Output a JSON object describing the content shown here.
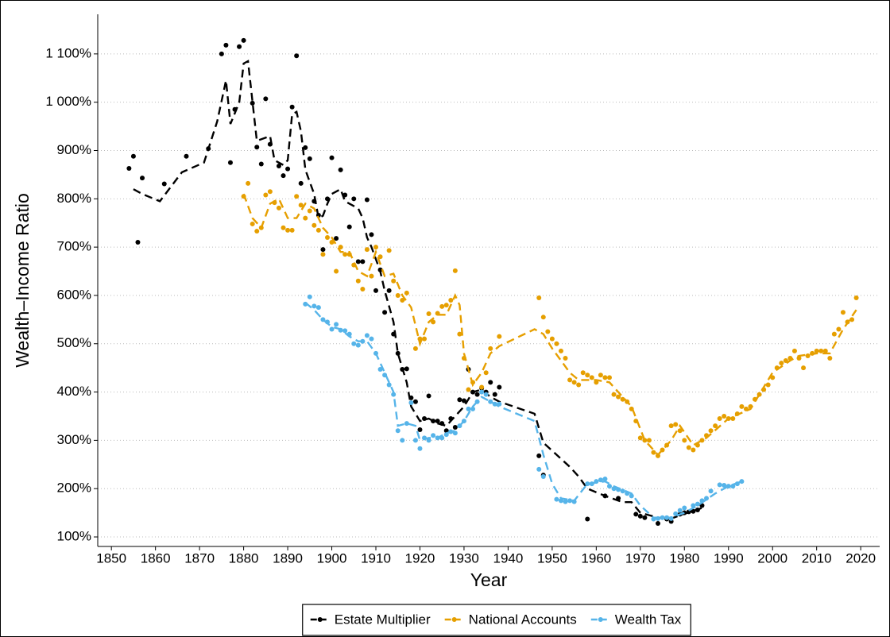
{
  "chart_data": {
    "type": "scatter",
    "xlabel": "Year",
    "ylabel": "Wealth–Income Ratio",
    "xlim": [
      1846.9,
      2024.3
    ],
    "ylim": [
      80.3,
      1182
    ],
    "xticks": [
      1850,
      1860,
      1870,
      1880,
      1890,
      1900,
      1910,
      1920,
      1930,
      1940,
      1950,
      1960,
      1970,
      1980,
      1990,
      2000,
      2010,
      2020
    ],
    "yticks": [
      {
        "value": 100,
        "label": "100%"
      },
      {
        "value": 200,
        "label": "200%"
      },
      {
        "value": 300,
        "label": "300%"
      },
      {
        "value": 400,
        "label": "400%"
      },
      {
        "value": 500,
        "label": "500%"
      },
      {
        "value": 600,
        "label": "600%"
      },
      {
        "value": 700,
        "label": "700%"
      },
      {
        "value": 800,
        "label": "800%"
      },
      {
        "value": 900,
        "label": "900%"
      },
      {
        "value": 1000,
        "label": "1 000%"
      },
      {
        "value": 1100,
        "label": "1 100%"
      }
    ],
    "grid": true,
    "legend": "bottom",
    "series": [
      {
        "name": "Estate Multiplier",
        "color": "#000000",
        "x": [
          1854,
          1855,
          1856,
          1857,
          1862,
          1867,
          1872,
          1875,
          1876,
          1877,
          1878,
          1879,
          1880,
          1882,
          1883,
          1884,
          1885,
          1886,
          1888,
          1889,
          1890,
          1891,
          1892,
          1893,
          1894,
          1895,
          1896,
          1897,
          1898,
          1899,
          1900,
          1901,
          1902,
          1903,
          1904,
          1905,
          1906,
          1907,
          1908,
          1909,
          1910,
          1911,
          1912,
          1913,
          1914,
          1915,
          1916,
          1917,
          1918,
          1919,
          1920,
          1921,
          1922,
          1923,
          1924,
          1925,
          1926,
          1927,
          1928,
          1929,
          1930,
          1931,
          1932,
          1933,
          1934,
          1935,
          1936,
          1937,
          1938,
          1947,
          1948,
          1958,
          1962,
          1965,
          1969,
          1970,
          1971,
          1974,
          1976,
          1977,
          1979,
          1980,
          1981,
          1982,
          1983,
          1984
        ],
        "values": [
          863,
          888,
          710,
          843,
          831,
          888,
          904,
          1100,
          1118,
          875,
          985,
          1115,
          1128,
          998,
          907,
          872,
          1007,
          913,
          868,
          848,
          862,
          990,
          1096,
          832,
          906,
          883,
          795,
          766,
          695,
          800,
          885,
          718,
          860,
          808,
          742,
          800,
          670,
          670,
          798,
          726,
          610,
          653,
          565,
          610,
          520,
          480,
          447,
          448,
          388,
          380,
          322,
          345,
          392,
          340,
          340,
          335,
          320,
          345,
          327,
          384,
          382,
          447,
          400,
          395,
          408,
          400,
          420,
          395,
          410,
          268,
          228,
          137,
          185,
          180,
          147,
          143,
          140,
          128,
          137,
          132,
          147,
          150,
          152,
          153,
          156,
          165
        ],
        "trend_x": [
          1855,
          1857,
          1861,
          1866,
          1871,
          1874,
          1876,
          1877,
          1879,
          1880,
          1881,
          1883,
          1886,
          1887,
          1889,
          1890,
          1891,
          1892,
          1893,
          1894,
          1896,
          1897,
          1898,
          1899,
          1900,
          1902,
          1903,
          1906,
          1907,
          1908,
          1909,
          1911,
          1912,
          1914,
          1915,
          1917,
          1918,
          1920,
          1922,
          1924,
          1926,
          1928,
          1930,
          1932,
          1934,
          1936,
          1938,
          1946,
          1948,
          1954,
          1956,
          1958,
          1962,
          1966,
          1968,
          1970,
          1974,
          1977,
          1980,
          1984
        ],
        "trend": [
          820,
          810,
          795,
          855,
          875,
          960,
          1045,
          955,
          1000,
          1080,
          1085,
          920,
          930,
          880,
          870,
          880,
          975,
          980,
          940,
          860,
          810,
          760,
          765,
          790,
          810,
          820,
          795,
          780,
          760,
          720,
          700,
          650,
          610,
          545,
          480,
          420,
          370,
          340,
          345,
          335,
          330,
          350,
          370,
          400,
          405,
          390,
          380,
          355,
          295,
          245,
          225,
          200,
          185,
          172,
          172,
          150,
          140,
          138,
          148,
          160
        ]
      },
      {
        "name": "National Accounts",
        "color": "#E69F00",
        "x": [
          1880,
          1881,
          1882,
          1883,
          1884,
          1885,
          1886,
          1887,
          1888,
          1889,
          1890,
          1891,
          1892,
          1893,
          1894,
          1895,
          1896,
          1897,
          1898,
          1899,
          1900,
          1901,
          1902,
          1903,
          1904,
          1905,
          1906,
          1907,
          1908,
          1909,
          1910,
          1911,
          1913,
          1914,
          1915,
          1916,
          1917,
          1919,
          1920,
          1921,
          1922,
          1923,
          1924,
          1925,
          1926,
          1927,
          1928,
          1929,
          1930,
          1931,
          1932,
          1934,
          1935,
          1936,
          1938,
          1947,
          1948,
          1949,
          1950,
          1951,
          1952,
          1953,
          1954,
          1955,
          1956,
          1957,
          1958,
          1959,
          1960,
          1961,
          1962,
          1963,
          1964,
          1965,
          1966,
          1967,
          1968,
          1969,
          1970,
          1971,
          1972,
          1973,
          1974,
          1975,
          1976,
          1977,
          1978,
          1979,
          1980,
          1981,
          1982,
          1983,
          1984,
          1985,
          1986,
          1987,
          1988,
          1989,
          1990,
          1991,
          1992,
          1993,
          1994,
          1995,
          1996,
          1997,
          1998,
          1999,
          2000,
          2001,
          2002,
          2003,
          2004,
          2005,
          2006,
          2007,
          2008,
          2009,
          2010,
          2011,
          2012,
          2013,
          2014,
          2015,
          2016,
          2017,
          2018,
          2019
        ],
        "values": [
          805,
          832,
          748,
          733,
          740,
          808,
          815,
          792,
          781,
          740,
          735,
          735,
          805,
          787,
          760,
          775,
          745,
          735,
          685,
          720,
          710,
          650,
          700,
          685,
          685,
          663,
          630,
          613,
          695,
          640,
          700,
          680,
          693,
          630,
          600,
          590,
          605,
          490,
          510,
          510,
          562,
          545,
          563,
          577,
          580,
          590,
          651,
          520,
          470,
          405,
          420,
          410,
          440,
          490,
          515,
          595,
          555,
          525,
          510,
          500,
          485,
          470,
          425,
          420,
          415,
          440,
          435,
          430,
          420,
          435,
          430,
          430,
          395,
          390,
          385,
          380,
          365,
          340,
          305,
          300,
          300,
          275,
          268,
          280,
          290,
          330,
          333,
          320,
          300,
          285,
          280,
          290,
          300,
          310,
          320,
          330,
          345,
          350,
          345,
          345,
          355,
          370,
          365,
          370,
          385,
          395,
          405,
          415,
          430,
          450,
          460,
          465,
          470,
          485,
          470,
          450,
          475,
          480,
          485,
          485,
          485,
          470,
          520,
          530,
          565,
          545,
          550,
          595
        ],
        "trend_x": [
          1880,
          1882,
          1884,
          1886,
          1888,
          1890,
          1892,
          1894,
          1896,
          1898,
          1900,
          1902,
          1904,
          1906,
          1908,
          1910,
          1912,
          1914,
          1916,
          1918,
          1920,
          1922,
          1924,
          1926,
          1928,
          1929,
          1930,
          1932,
          1934,
          1936,
          1938,
          1946,
          1948,
          1950,
          1954,
          1956,
          1960,
          1963,
          1966,
          1968,
          1971,
          1974,
          1977,
          1979,
          1982,
          1985,
          1990,
          1995,
          2000,
          2004,
          2006,
          2010,
          2013,
          2016,
          2019
        ],
        "trend": [
          810,
          760,
          740,
          790,
          800,
          760,
          760,
          790,
          780,
          740,
          720,
          690,
          690,
          650,
          640,
          690,
          640,
          645,
          600,
          575,
          500,
          545,
          560,
          560,
          600,
          580,
          480,
          415,
          440,
          480,
          495,
          530,
          520,
          490,
          440,
          425,
          425,
          420,
          390,
          370,
          300,
          270,
          300,
          330,
          290,
          305,
          345,
          365,
          440,
          465,
          475,
          480,
          480,
          530,
          570
        ]
      },
      {
        "name": "Wealth Tax",
        "color": "#56B4E9",
        "x": [
          1894,
          1895,
          1896,
          1897,
          1898,
          1899,
          1900,
          1901,
          1902,
          1903,
          1904,
          1905,
          1906,
          1907,
          1908,
          1909,
          1910,
          1911,
          1912,
          1913,
          1914,
          1915,
          1916,
          1917,
          1918,
          1919,
          1920,
          1921,
          1922,
          1923,
          1924,
          1925,
          1926,
          1927,
          1928,
          1929,
          1930,
          1931,
          1932,
          1933,
          1934,
          1935,
          1936,
          1937,
          1938,
          1947,
          1948,
          1951,
          1952,
          1953,
          1954,
          1955,
          1958,
          1959,
          1960,
          1961,
          1962,
          1963,
          1964,
          1965,
          1966,
          1967,
          1968,
          1973,
          1974,
          1975,
          1976,
          1977,
          1978,
          1979,
          1980,
          1982,
          1983,
          1984,
          1985,
          1986,
          1988,
          1989,
          1990,
          1991,
          1992,
          1993
        ],
        "values": [
          582,
          597,
          578,
          575,
          550,
          545,
          530,
          540,
          528,
          527,
          520,
          500,
          497,
          505,
          517,
          510,
          480,
          447,
          435,
          415,
          395,
          320,
          300,
          335,
          378,
          300,
          283,
          305,
          300,
          310,
          305,
          305,
          312,
          318,
          315,
          330,
          340,
          365,
          365,
          380,
          400,
          395,
          380,
          375,
          375,
          240,
          225,
          178,
          175,
          173,
          175,
          173,
          210,
          210,
          215,
          218,
          220,
          205,
          200,
          198,
          195,
          190,
          185,
          137,
          138,
          140,
          140,
          138,
          148,
          155,
          160,
          165,
          168,
          175,
          180,
          195,
          208,
          207,
          205,
          205,
          210,
          215
        ],
        "trend_x": [
          1894,
          1896,
          1898,
          1900,
          1902,
          1904,
          1906,
          1908,
          1910,
          1912,
          1914,
          1915,
          1917,
          1919,
          1920,
          1922,
          1924,
          1926,
          1928,
          1930,
          1932,
          1934,
          1936,
          1938,
          1946,
          1948,
          1950,
          1952,
          1955,
          1958,
          1962,
          1964,
          1968,
          1970,
          1973,
          1977,
          1980,
          1983,
          1987,
          1990,
          1993
        ],
        "trend": [
          585,
          570,
          550,
          535,
          530,
          515,
          505,
          505,
          480,
          440,
          400,
          330,
          335,
          330,
          300,
          305,
          305,
          315,
          320,
          340,
          370,
          390,
          380,
          370,
          340,
          270,
          210,
          180,
          175,
          210,
          215,
          205,
          190,
          165,
          140,
          140,
          150,
          165,
          190,
          205,
          215
        ]
      }
    ]
  }
}
